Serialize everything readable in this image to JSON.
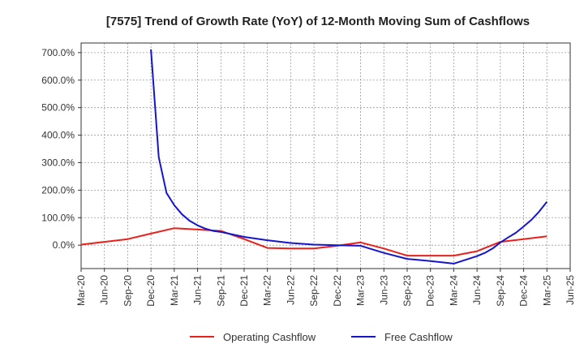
{
  "chart_data": {
    "type": "line",
    "title": "[7575]  Trend of Growth Rate (YoY) of 12-Month Moving Sum of Cashflows",
    "xlabel": "",
    "ylabel": "",
    "x_tick_labels": [
      "Mar-20",
      "Jun-20",
      "Sep-20",
      "Dec-20",
      "Mar-21",
      "Jun-21",
      "Sep-21",
      "Dec-21",
      "Mar-22",
      "Jun-22",
      "Sep-22",
      "Dec-22",
      "Mar-23",
      "Jun-23",
      "Sep-23",
      "Dec-23",
      "Mar-24",
      "Jun-24",
      "Sep-24",
      "Dec-24",
      "Mar-25",
      "Jun-25"
    ],
    "y_tick_labels": [
      "0.0%",
      "100.0%",
      "200.0%",
      "300.0%",
      "400.0%",
      "500.0%",
      "600.0%",
      "700.0%"
    ],
    "y_ticks": [
      0,
      100,
      200,
      300,
      400,
      500,
      600,
      700
    ],
    "ylim": [
      -85,
      735
    ],
    "grid": true,
    "legend_position": "bottom",
    "series": [
      {
        "name": "Operating Cashflow",
        "color": "#e8211c",
        "x": [
          "Mar-20",
          "Jun-20",
          "Sep-20",
          "Dec-20",
          "Mar-21",
          "Jun-21",
          "Sep-21",
          "Dec-21",
          "Mar-22",
          "Jun-22",
          "Sep-22",
          "Dec-22",
          "Mar-23",
          "Jun-23",
          "Sep-23",
          "Dec-23",
          "Mar-24",
          "Jun-24",
          "Sep-24",
          "Dec-24",
          "Mar-25"
        ],
        "values": [
          2,
          12,
          22,
          42,
          62,
          57,
          52,
          22,
          -10,
          -12,
          -12,
          -2,
          10,
          -12,
          -38,
          -38,
          -38,
          -22,
          12,
          22,
          32
        ]
      },
      {
        "name": "Free Cashflow",
        "color": "#1515cc",
        "x": [
          "Dec-20",
          "Jan-21",
          "Feb-21",
          "Mar-21",
          "Apr-21",
          "May-21",
          "Jun-21",
          "Jul-21",
          "Aug-21",
          "Sep-21",
          "Dec-21",
          "Mar-22",
          "Jun-22",
          "Sep-22",
          "Dec-22",
          "Mar-23",
          "Jun-23",
          "Sep-23",
          "Dec-23",
          "Mar-24",
          "Jun-24",
          "Jul-24",
          "Aug-24",
          "Sep-24",
          "Oct-24",
          "Nov-24",
          "Dec-24",
          "Jan-25",
          "Feb-25",
          "Mar-25"
        ],
        "values": [
          712,
          320,
          190,
          145,
          112,
          88,
          72,
          60,
          52,
          48,
          30,
          18,
          8,
          2,
          0,
          -2,
          -28,
          -50,
          -58,
          -67,
          -40,
          -28,
          -12,
          10,
          28,
          45,
          68,
          92,
          122,
          158
        ]
      }
    ]
  }
}
